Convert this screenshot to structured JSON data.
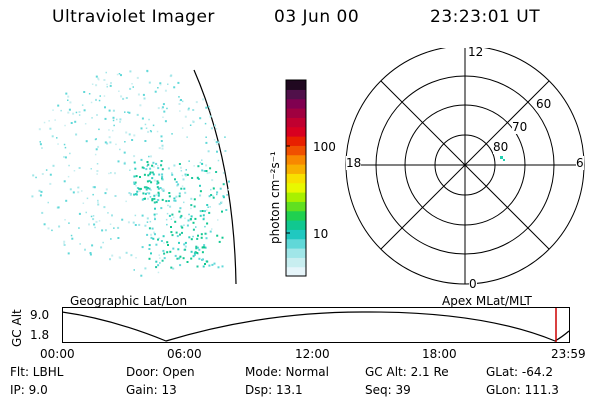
{
  "header": {
    "instrument": "Ultraviolet Imager",
    "date": "03 Jun 00",
    "time": "23:23:01 UT"
  },
  "geo_panel": {
    "label": "Geographic Lat/Lon"
  },
  "polar_panel": {
    "label": "Apex MLat/MLT",
    "mlt_labels": {
      "top": "12",
      "left": "18",
      "right": "6",
      "bottom": "0"
    },
    "lat_labels": [
      "60",
      "70",
      "80"
    ]
  },
  "colorbar": {
    "label": "photon cm⁻²s⁻¹",
    "ticks": [
      "100",
      "10"
    ],
    "colors": [
      "#e6f5fa",
      "#c8eef0",
      "#a0e6e8",
      "#60d8d8",
      "#20c8c0",
      "#10c890",
      "#20d050",
      "#60e020",
      "#a8f000",
      "#e8f800",
      "#f8e000",
      "#f8b000",
      "#f88800",
      "#f05000",
      "#e82000",
      "#d80020",
      "#c00030",
      "#a00040",
      "#800050",
      "#50104a",
      "#200820"
    ]
  },
  "altitude_plot": {
    "ylabel": "GC Alt",
    "yticks": [
      "9.0",
      "1.8"
    ],
    "xticks": [
      "00:00",
      "06:00",
      "12:00",
      "18:00",
      "23:59"
    ],
    "current_marker_color": "#cc0000"
  },
  "info": {
    "flt": "Flt: LBHL",
    "ip": "IP:  9.0",
    "door": "Door: Open",
    "gain": "Gain: 13",
    "mode": "Mode: Normal",
    "dsp": "Dsp:   13.1",
    "gcalt": "GC Alt: 2.1 Re",
    "seq": "Seq: 39",
    "glat": "GLat: -64.2",
    "glon": "GLon: 111.3"
  }
}
